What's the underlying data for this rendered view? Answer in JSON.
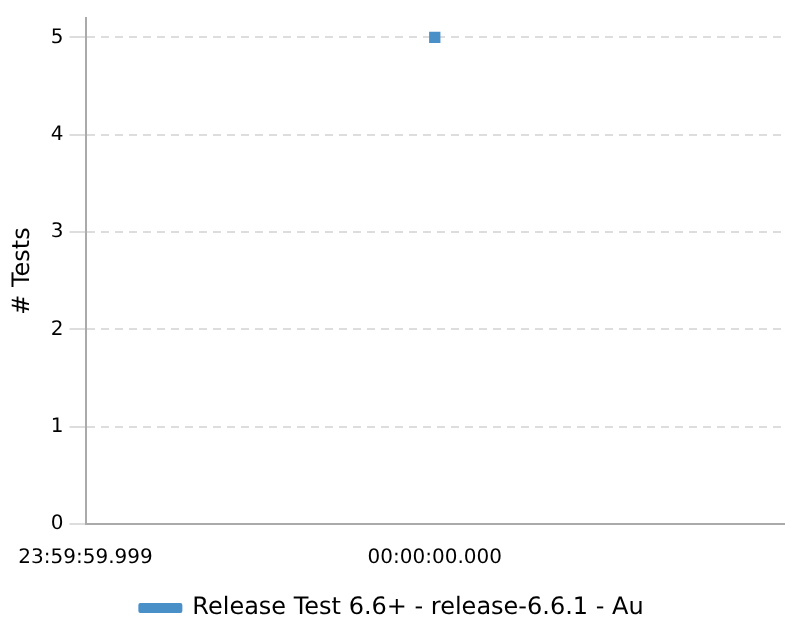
{
  "chart_data": {
    "type": "line",
    "ylabel": "# Tests",
    "categories": [
      "23:59:59.999",
      "00:00:00.000",
      null
    ],
    "series": [
      {
        "name": "Release Test 6.6+ - release-6.6.1 - Au",
        "color": "#4a90c8",
        "values": [
          null,
          5,
          null
        ]
      }
    ],
    "ylim": [
      0,
      5.2
    ],
    "yticks": [
      0,
      1,
      2,
      3,
      4,
      5
    ],
    "grid": "y",
    "legend": "bottom",
    "marker": "square",
    "line_style": "solid"
  }
}
